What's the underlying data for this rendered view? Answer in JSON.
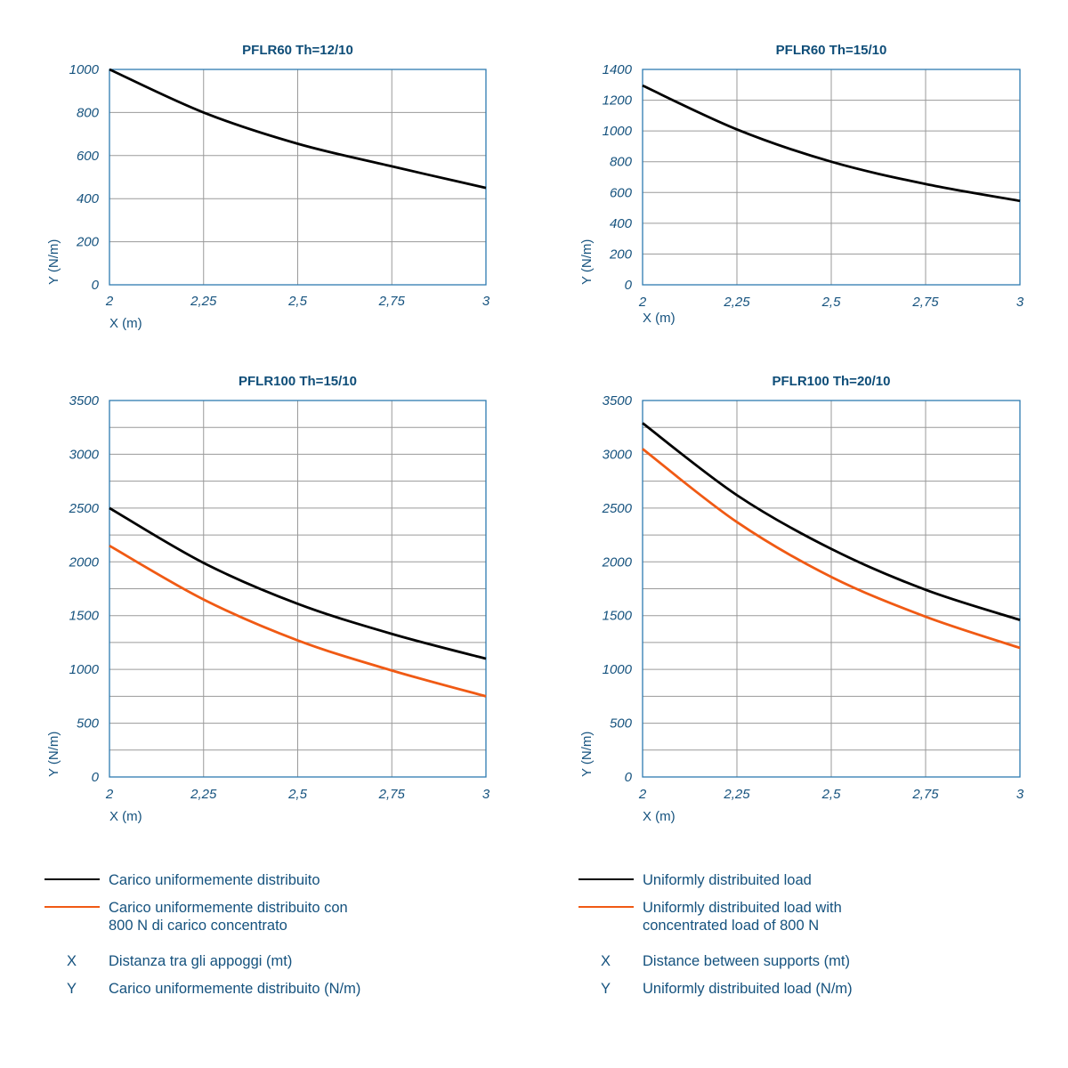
{
  "colors": {
    "text": "#15527e",
    "frame": "#2e7bb0",
    "grid": "#9a9a9a",
    "uniform": "#000000",
    "concentrated": "#f05a14"
  },
  "chart_data": [
    {
      "type": "line",
      "title": "PFLR60 Th=12/10",
      "xlabel": "X (m)",
      "ylabel": "Y (N/m)",
      "x": [
        2,
        2.25,
        2.5,
        2.75,
        3
      ],
      "xticks": [
        "2",
        "2,25",
        "2,5",
        "2,75",
        "3"
      ],
      "xlim": [
        2,
        3
      ],
      "ylim": [
        0,
        1000
      ],
      "yticks": [
        "0",
        "200",
        "400",
        "600",
        "800",
        "1000"
      ],
      "ygrid_step": 200,
      "grid": true,
      "series": [
        {
          "key": "uniform",
          "values": [
            1000,
            800,
            655,
            550,
            450
          ]
        }
      ]
    },
    {
      "type": "line",
      "title": "PFLR60 Th=15/10",
      "xlabel": "X (m)",
      "ylabel": "Y (N/m)",
      "x": [
        2,
        2.25,
        2.5,
        2.75,
        3
      ],
      "xticks": [
        "2",
        "2,25",
        "2,5",
        "2,75",
        "3"
      ],
      "xlim": [
        2,
        3
      ],
      "ylim": [
        0,
        1400
      ],
      "yticks": [
        "0",
        "200",
        "400",
        "600",
        "800",
        "1000",
        "1200",
        "1400"
      ],
      "ygrid_step": 200,
      "grid": true,
      "series": [
        {
          "key": "uniform",
          "values": [
            1295,
            1010,
            800,
            655,
            545
          ]
        }
      ]
    },
    {
      "type": "line",
      "title": "PFLR100 Th=15/10",
      "xlabel": "X (m)",
      "ylabel": "Y (N/m)",
      "x": [
        2,
        2.25,
        2.5,
        2.75,
        3
      ],
      "xticks": [
        "2",
        "2,25",
        "2,5",
        "2,75",
        "3"
      ],
      "xlim": [
        2,
        3
      ],
      "ylim": [
        0,
        3500
      ],
      "yticks": [
        "0",
        "500",
        "1000",
        "1500",
        "2000",
        "2500",
        "3000",
        "3500"
      ],
      "ygrid_step": 250,
      "grid": true,
      "series": [
        {
          "key": "uniform",
          "values": [
            2500,
            1990,
            1610,
            1330,
            1100
          ]
        },
        {
          "key": "concentrated",
          "values": [
            2150,
            1650,
            1270,
            990,
            750
          ]
        }
      ]
    },
    {
      "type": "line",
      "title": "PFLR100 Th=20/10",
      "xlabel": "X (m)",
      "ylabel": "Y (N/m)",
      "x": [
        2,
        2.25,
        2.5,
        2.75,
        3
      ],
      "xticks": [
        "2",
        "2,25",
        "2,5",
        "2,75",
        "3"
      ],
      "xlim": [
        2,
        3
      ],
      "ylim": [
        0,
        3500
      ],
      "yticks": [
        "0",
        "500",
        "1000",
        "1500",
        "2000",
        "2500",
        "3000",
        "3500"
      ],
      "ygrid_step": 250,
      "grid": true,
      "series": [
        {
          "key": "uniform",
          "values": [
            3290,
            2620,
            2120,
            1740,
            1460
          ]
        },
        {
          "key": "concentrated",
          "values": [
            3050,
            2370,
            1860,
            1490,
            1200
          ]
        }
      ]
    }
  ],
  "legend": {
    "it": {
      "uniform": "Carico uniformemente distribuito",
      "concentrated_1": "Carico uniformemente distribuito con",
      "concentrated_2": "800 N di carico concentrato",
      "x_key": "X",
      "x_desc": "Distanza tra gli appoggi (mt)",
      "y_key": "Y",
      "y_desc": "Carico uniformemente distribuito (N/m)"
    },
    "en": {
      "uniform": "Uniformly distribuited load",
      "concentrated_1": "Uniformly distribuited load with",
      "concentrated_2": "concentrated load of 800 N",
      "x_key": "X",
      "x_desc": "Distance between supports (mt)",
      "y_key": "Y",
      "y_desc": "Uniformly distribuited load (N/m)"
    }
  }
}
